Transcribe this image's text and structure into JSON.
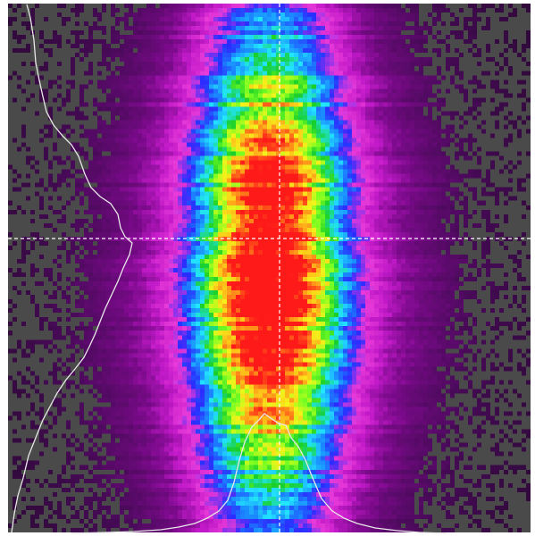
{
  "image": {
    "kind": "laser-beam-profile-false-color",
    "colormap": [
      "#3a3a3a",
      "#2a0a33",
      "#4a0a5a",
      "#7a0a8a",
      "#c21ac9",
      "#e83ad9",
      "#2a2cff",
      "#1a8cff",
      "#22e6ff",
      "#18cf2a",
      "#7bff22",
      "#f4f41a",
      "#ffbb1a",
      "#ff5a1a",
      "#ff1a1a"
    ],
    "background_noise_color": "#4a4a4a",
    "crosshair_color": "#ffffff",
    "profile_line_color": "#e8e8e8",
    "crosshair_style": "dashed",
    "profiles_shown": [
      "horizontal",
      "vertical"
    ]
  }
}
